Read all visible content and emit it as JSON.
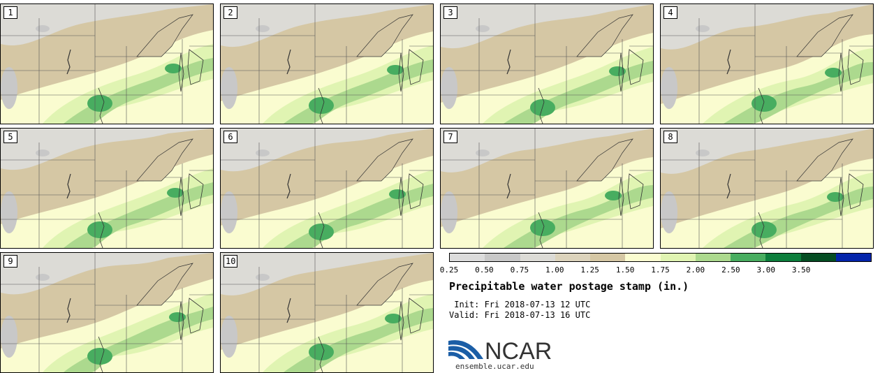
{
  "map": {
    "product": "Precipitable water postage stamp",
    "members": [
      "1",
      "2",
      "3",
      "4",
      "5",
      "6",
      "7",
      "8",
      "9",
      "10"
    ]
  },
  "colorbar": {
    "ticks": [
      "0.25",
      "0.50",
      "0.75",
      "1.00",
      "1.25",
      "1.50",
      "1.75",
      "2.00",
      "2.50",
      "3.00",
      "3.50"
    ],
    "colors": [
      "#dcdcdc",
      "#c8c8c8",
      "#dcdbd6",
      "#dcd3bc",
      "#d5c7a4",
      "#fafcd0",
      "#e0f4b2",
      "#acd98e",
      "#48ad60",
      "#0c7e3c",
      "#054d23",
      "#0324ab"
    ]
  },
  "info": {
    "title": "Precipitable water postage stamp (in.)",
    "init": " Init: Fri 2018-07-13 12 UTC",
    "valid": "Valid: Fri 2018-07-13 16 UTC"
  },
  "logo": {
    "text": "NCAR",
    "url": "ensemble.ucar.edu",
    "colors": {
      "blue": "#1b5ea6",
      "dark": "#333333"
    }
  }
}
